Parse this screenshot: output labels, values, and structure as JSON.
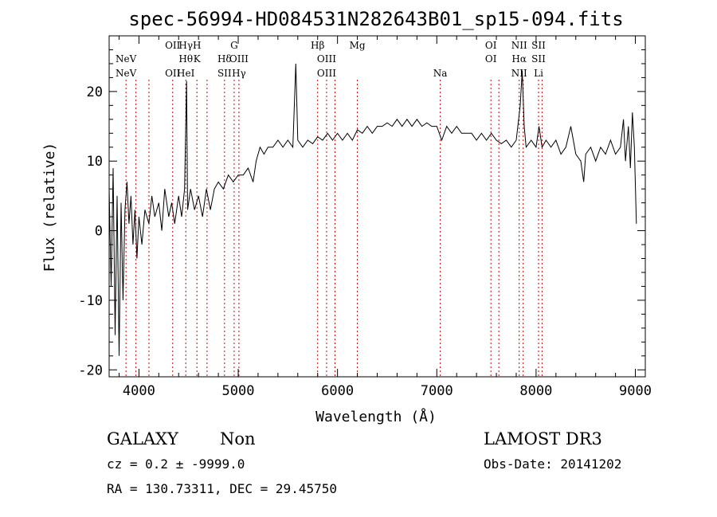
{
  "chart_data": {
    "type": "line",
    "title": "spec-56994-HD084531N282643B01_sp15-094.fits",
    "xlabel": "Wavelength (Å)",
    "ylabel": "Flux (relative)",
    "xlim": [
      3700,
      9100
    ],
    "ylim": [
      -21,
      28
    ],
    "x_ticks": [
      4000,
      5000,
      6000,
      7000,
      8000,
      9000
    ],
    "y_ticks": [
      -20,
      -10,
      0,
      10,
      20
    ],
    "grid": false,
    "legend": "none",
    "series": [
      {
        "points": [
          [
            3700,
            6
          ],
          [
            3720,
            -8
          ],
          [
            3740,
            9
          ],
          [
            3760,
            -15
          ],
          [
            3780,
            5
          ],
          [
            3800,
            -18
          ],
          [
            3820,
            4
          ],
          [
            3840,
            -10
          ],
          [
            3860,
            3
          ],
          [
            3880,
            7
          ],
          [
            3900,
            1
          ],
          [
            3920,
            5
          ],
          [
            3940,
            -2
          ],
          [
            3960,
            3
          ],
          [
            3980,
            -4
          ],
          [
            4000,
            2
          ],
          [
            4030,
            -2
          ],
          [
            4060,
            3
          ],
          [
            4100,
            1
          ],
          [
            4130,
            5
          ],
          [
            4160,
            2
          ],
          [
            4200,
            4
          ],
          [
            4230,
            0
          ],
          [
            4260,
            6
          ],
          [
            4300,
            2
          ],
          [
            4330,
            4
          ],
          [
            4360,
            1
          ],
          [
            4400,
            5
          ],
          [
            4430,
            2
          ],
          [
            4460,
            6
          ],
          [
            4480,
            21.5
          ],
          [
            4490,
            3
          ],
          [
            4520,
            6
          ],
          [
            4560,
            3
          ],
          [
            4600,
            5
          ],
          [
            4640,
            2
          ],
          [
            4680,
            6
          ],
          [
            4720,
            3
          ],
          [
            4760,
            6
          ],
          [
            4800,
            7
          ],
          [
            4850,
            6
          ],
          [
            4900,
            8
          ],
          [
            4950,
            7
          ],
          [
            5000,
            8
          ],
          [
            5050,
            8
          ],
          [
            5100,
            9
          ],
          [
            5150,
            7
          ],
          [
            5180,
            10
          ],
          [
            5220,
            12
          ],
          [
            5260,
            11
          ],
          [
            5300,
            12
          ],
          [
            5350,
            12
          ],
          [
            5400,
            13
          ],
          [
            5450,
            12
          ],
          [
            5500,
            13
          ],
          [
            5550,
            12
          ],
          [
            5580,
            24
          ],
          [
            5600,
            13
          ],
          [
            5650,
            12
          ],
          [
            5700,
            13
          ],
          [
            5750,
            12.5
          ],
          [
            5800,
            13.5
          ],
          [
            5850,
            13
          ],
          [
            5900,
            14
          ],
          [
            5950,
            13
          ],
          [
            6000,
            14
          ],
          [
            6050,
            13
          ],
          [
            6100,
            14
          ],
          [
            6150,
            13
          ],
          [
            6200,
            14.5
          ],
          [
            6250,
            14
          ],
          [
            6300,
            15
          ],
          [
            6350,
            14
          ],
          [
            6400,
            15
          ],
          [
            6450,
            15
          ],
          [
            6500,
            15.5
          ],
          [
            6550,
            15
          ],
          [
            6600,
            16
          ],
          [
            6650,
            15
          ],
          [
            6700,
            16
          ],
          [
            6750,
            15
          ],
          [
            6800,
            16
          ],
          [
            6850,
            15
          ],
          [
            6900,
            15.5
          ],
          [
            6950,
            15
          ],
          [
            7000,
            15
          ],
          [
            7050,
            13
          ],
          [
            7100,
            15
          ],
          [
            7150,
            14
          ],
          [
            7200,
            15
          ],
          [
            7250,
            14
          ],
          [
            7300,
            14
          ],
          [
            7350,
            14
          ],
          [
            7400,
            13
          ],
          [
            7450,
            14
          ],
          [
            7500,
            13
          ],
          [
            7550,
            14
          ],
          [
            7600,
            13
          ],
          [
            7650,
            12.5
          ],
          [
            7700,
            13
          ],
          [
            7750,
            12
          ],
          [
            7800,
            13
          ],
          [
            7840,
            18
          ],
          [
            7860,
            23
          ],
          [
            7880,
            15
          ],
          [
            7900,
            12
          ],
          [
            7950,
            13
          ],
          [
            8000,
            12
          ],
          [
            8030,
            15
          ],
          [
            8060,
            12
          ],
          [
            8100,
            13
          ],
          [
            8150,
            12
          ],
          [
            8200,
            13
          ],
          [
            8250,
            11
          ],
          [
            8300,
            12
          ],
          [
            8350,
            15
          ],
          [
            8400,
            11
          ],
          [
            8450,
            10
          ],
          [
            8480,
            7
          ],
          [
            8500,
            11
          ],
          [
            8550,
            12
          ],
          [
            8600,
            10
          ],
          [
            8650,
            12
          ],
          [
            8700,
            11
          ],
          [
            8750,
            13
          ],
          [
            8800,
            11
          ],
          [
            8850,
            12
          ],
          [
            8880,
            16
          ],
          [
            8900,
            10
          ],
          [
            8930,
            15
          ],
          [
            8950,
            9
          ],
          [
            8970,
            17
          ],
          [
            8990,
            12
          ],
          [
            9010,
            1
          ]
        ]
      }
    ],
    "line_markers": [
      {
        "wave": 3870,
        "row1": "",
        "row2": "NeV",
        "row3": "NeV"
      },
      {
        "wave": 3970,
        "row1": "",
        "row2": "",
        "row3": ""
      },
      {
        "wave": 4101,
        "row1": "",
        "row2": "",
        "row3": ""
      },
      {
        "wave": 4340,
        "row1": "OII",
        "row2": "",
        "row3": "OII"
      },
      {
        "wave": 4472,
        "row1": "Hγ",
        "row2": "Hθ",
        "row3": "HeI"
      },
      {
        "wave": 4584,
        "row1": "H",
        "row2": "K",
        "row3": ""
      },
      {
        "wave": 4686,
        "row1": "",
        "row2": "",
        "row3": ""
      },
      {
        "wave": 4862,
        "row1": "",
        "row2": "Hδ",
        "row3": "SII"
      },
      {
        "wave": 4959,
        "row1": "G",
        "row2": "",
        "row3": ""
      },
      {
        "wave": 5007,
        "row1": "",
        "row2": "OIII",
        "row3": "Hγ"
      },
      {
        "wave": 5800,
        "row1": "Hβ",
        "row2": "",
        "row3": ""
      },
      {
        "wave": 5890,
        "row1": "",
        "row2": "OIII",
        "row3": "OIII"
      },
      {
        "wave": 5975,
        "row1": "",
        "row2": "",
        "row3": ""
      },
      {
        "wave": 6200,
        "row1": "Mg",
        "row2": "",
        "row3": ""
      },
      {
        "wave": 7035,
        "row1": "",
        "row2": "",
        "row3": "Na"
      },
      {
        "wave": 7545,
        "row1": "OI",
        "row2": "OI",
        "row3": ""
      },
      {
        "wave": 7625,
        "row1": "",
        "row2": "",
        "row3": ""
      },
      {
        "wave": 7830,
        "row1": "NII",
        "row2": "Hα",
        "row3": "NII"
      },
      {
        "wave": 7870,
        "row1": "",
        "row2": "",
        "row3": ""
      },
      {
        "wave": 8025,
        "row1": "SII",
        "row2": "SII",
        "row3": "Li"
      },
      {
        "wave": 8060,
        "row1": "",
        "row2": "",
        "row3": ""
      }
    ]
  },
  "info": {
    "class": "GALAXY",
    "subclass": "Non",
    "cz": "cz = 0.2 ± -9999.0",
    "radec": "RA = 130.73311, DEC =  29.45750",
    "survey": "LAMOST DR3",
    "obs_date": "Obs-Date: 20141202"
  }
}
